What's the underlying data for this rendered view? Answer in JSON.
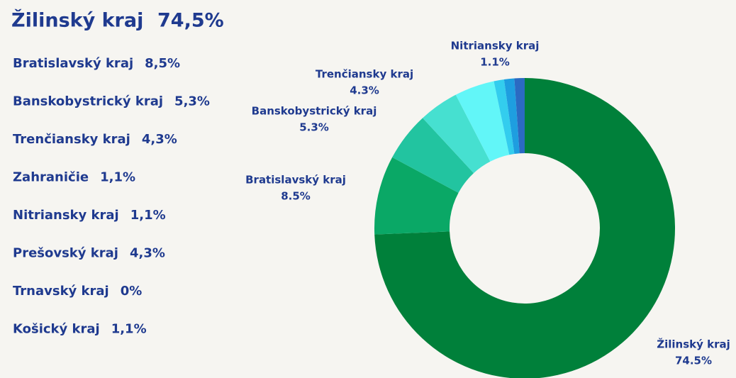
{
  "summary": {
    "headline": {
      "name": "Žilinský kraj",
      "value": "74,5%"
    },
    "items": [
      {
        "name": "Bratislavský kraj",
        "value": "8,5%"
      },
      {
        "name": "Banskobystrický kraj",
        "value": "5,3%"
      },
      {
        "name": "Trenčiansky kraj",
        "value": "4,3%"
      },
      {
        "name": "Zahraničie",
        "value": "1,1%"
      },
      {
        "name": "Nitriansky kraj",
        "value": "1,1%"
      },
      {
        "name": "Prešovský kraj",
        "value": "4,3%"
      },
      {
        "name": "Trnavský kraj",
        "value": "0%"
      },
      {
        "name": "Košický kraj",
        "value": "1,1%"
      }
    ]
  },
  "chart_data": {
    "type": "pie",
    "categories": [
      "Žilinský kraj",
      "Bratislavský kraj",
      "Banskobystrický kraj",
      "Trenčiansky kraj",
      null,
      null,
      null,
      "Nitriansky kraj"
    ],
    "values": [
      74.5,
      8.5,
      5.3,
      4.3,
      4.3,
      1.1,
      1.1,
      1.1
    ],
    "value_labels": [
      "74.5%",
      "8.5%",
      "5.3%",
      "4.3%",
      null,
      null,
      null,
      "1.1%"
    ],
    "colors": [
      "#00803a",
      "#0aa866",
      "#22c4a0",
      "#46e0d0",
      "#62f6f8",
      "#33cdee",
      "#1e9ee0",
      "#2b6ac2"
    ]
  }
}
